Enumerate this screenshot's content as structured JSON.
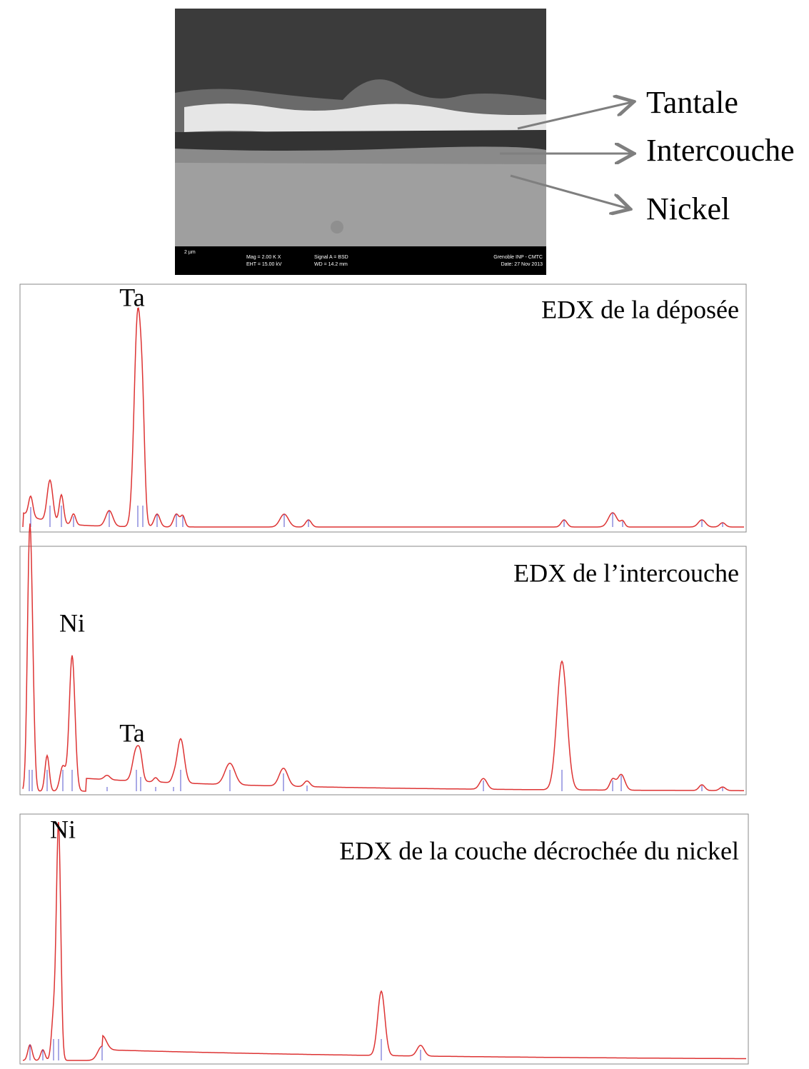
{
  "sem_image": {
    "labels": [
      "Tantale",
      "Intercouche",
      "Nickel"
    ],
    "info_bar": {
      "scale": "2 µm",
      "mag": "Mag = 2.00 K X",
      "eht": "EHT = 15.00 kV",
      "signal": "Signal A = BSD",
      "wd": "WD = 14.2 mm",
      "lab": "Grenoble INP - CMTC",
      "date": "Date: 27 Nov 2013"
    }
  },
  "spectra": [
    {
      "title": "EDX de la déposée",
      "peak_labels": [
        "Ta"
      ]
    },
    {
      "title": "EDX de l’intercouche",
      "peak_labels": [
        "Ni",
        "Ta"
      ]
    },
    {
      "title": "EDX de la couche décrochée du nickel",
      "peak_labels": [
        "Ni"
      ]
    }
  ]
}
